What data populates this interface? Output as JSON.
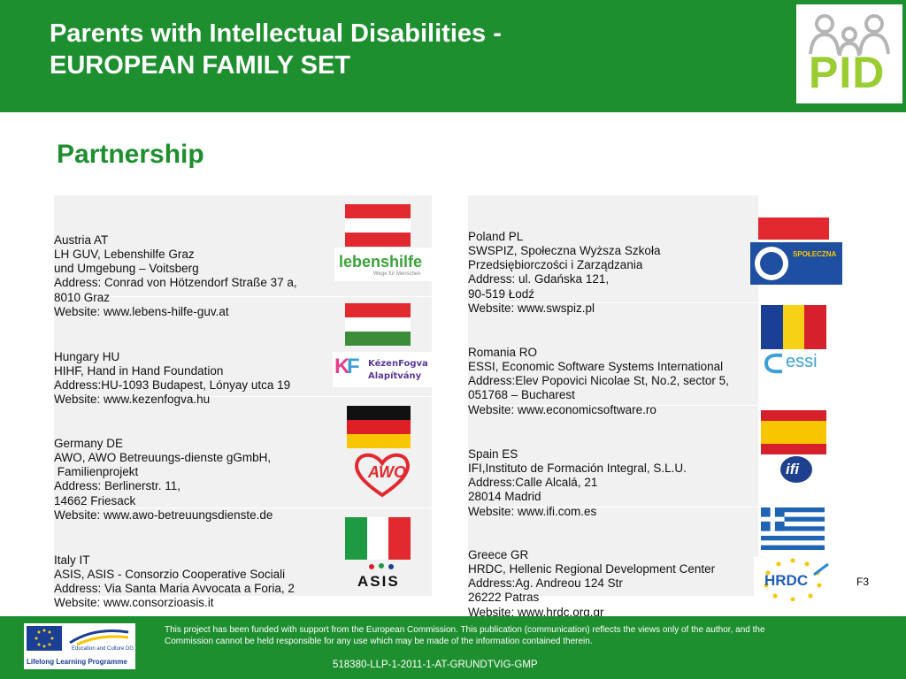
{
  "header": {
    "title_line1": "Parents with Intellectual Disabilities -",
    "title_line2": "EUROPEAN FAMILY SET",
    "logo_text": "PID"
  },
  "section_title": "Partnership",
  "left_partners": [
    {
      "lines": [
        "Austria AT",
        "LH GUV, Lebenshilfe Graz",
        "und Umgebung – Voitsberg",
        "Address: Conrad von Hötzendorf Straße 37 a,",
        "8010 Graz",
        "Website: www.lebens-hilfe-guv.at"
      ],
      "logo": "lebenshilfe",
      "logo_sub": "Wege für Menschen"
    },
    {
      "lines": [
        "Hungary HU",
        "HIHF, Hand in Hand Foundation",
        "Address:HU-1093 Budapest, Lónyay utca 19",
        "Website: www.kezenfogva.hu"
      ],
      "logo": "KézenFogva",
      "logo_sub": "Alapítvány"
    },
    {
      "lines": [
        "Germany DE",
        "AWO, AWO Betreuungs-dienste gGmbH,",
        " Familienprojekt",
        "Address: Berlinerstr. 11,",
        "14662 Friesack",
        "Website: www.awo-betreuungsdienste.de"
      ],
      "logo": "AWO"
    },
    {
      "lines": [
        "Italy IT",
        "ASIS, ASIS - Consorzio Cooperative Sociali",
        "Address: Via Santa Maria Avvocata a Foria, 2",
        "Website: www.consorzioasis.it"
      ],
      "logo": "ASIS"
    }
  ],
  "right_partners": [
    {
      "lines": [
        "Poland PL",
        "SWSPIZ, Społeczna Wyższa Szkoła",
        "Przedsiębiorczości i Zarządzania",
        "Address: ul. Gdańska 121,",
        "90-519 Łodź",
        "Website: www.swspiz.pl"
      ],
      "logo": "SPOŁECZNA"
    },
    {
      "lines": [
        "Romania RO",
        "ESSI, Economic Software Systems International",
        "Address:Elev Popovici Nicolae St, No.2, sector 5,",
        "051768 – Bucharest",
        "Website: www.economicsoftware.ro"
      ],
      "logo": "essi"
    },
    {
      "lines": [
        "Spain ES",
        "IFI,Instituto de Formación Integral, S.L.U.",
        "Address:Calle Alcalá, 21",
        "28014 Madrid",
        "Website: www.ifi.com.es"
      ],
      "logo": "ifi"
    },
    {
      "lines": [
        "Greece GR",
        "HRDC, Hellenic Regional Development Center",
        "Address:Ag. Andreou 124 Str",
        "26222 Patras",
        "Website: www.hrdc.org.gr"
      ],
      "logo": "HRDC"
    }
  ],
  "slide_number": "F3",
  "footer": {
    "funder_line1": "Education and Culture DG",
    "funder_line2": "Lifelong Learning Programme",
    "disclaimer": "This project has been funded with support from the European Commission. This publication (communication) reflects the views only of the author, and the Commission cannot be held responsible for any use which may be made of the information contained therein.",
    "project_id": "518380-LLP-1-2011-1-AT-GRUNDTVIG-GMP"
  },
  "colors": {
    "brand_green": "#1e8f2f",
    "logo_green": "#9acd32"
  }
}
